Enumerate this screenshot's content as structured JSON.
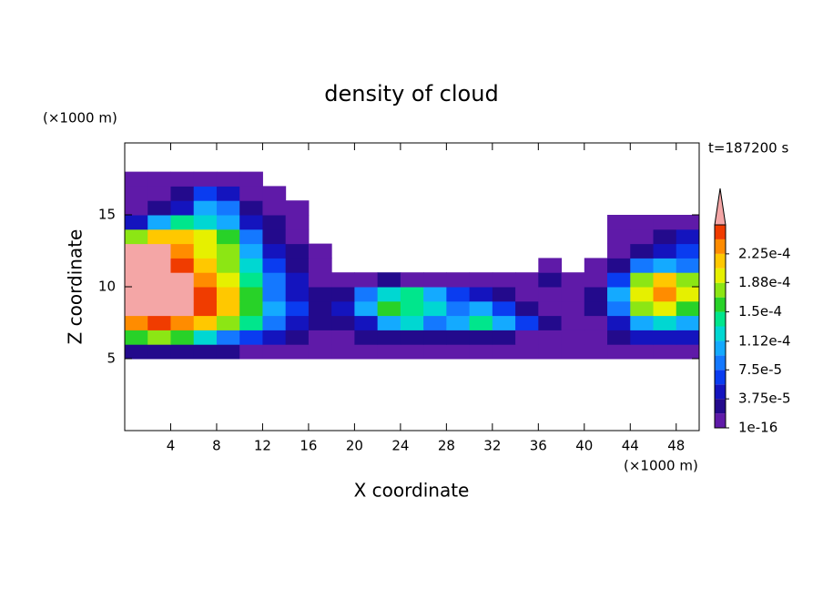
{
  "chart_data": {
    "type": "contourf",
    "title": "density of cloud",
    "xlabel": "X coordinate",
    "ylabel": "Z coordinate",
    "x_unit": "(×1000 m)",
    "y_unit": "(×1000 m)",
    "annotation": "t=187200 s",
    "xlim": [
      0,
      50
    ],
    "ylim": [
      0,
      20
    ],
    "xticks": [
      4,
      8,
      12,
      16,
      20,
      24,
      28,
      32,
      36,
      40,
      44,
      48
    ],
    "yticks": [
      5,
      10,
      15
    ],
    "x": [
      1,
      3,
      5,
      7,
      9,
      11,
      13,
      15,
      17,
      19,
      21,
      23,
      25,
      27,
      29,
      31,
      33,
      35,
      37,
      39,
      41,
      43,
      45,
      47,
      49
    ],
    "y": [
      5.5,
      6.5,
      7.5,
      8.5,
      9.5,
      10.5,
      11.5,
      12.5,
      13.5,
      14.5,
      15.5,
      16.5,
      17.5
    ],
    "values": [
      [
        2.8e-05,
        2.8e-05,
        2.8e-05,
        2.8e-05,
        2.8e-05,
        9e-06,
        9e-06,
        9e-06,
        9e-06,
        9e-06,
        9e-06,
        9e-06,
        9e-06,
        9e-06,
        9e-06,
        9e-06,
        9e-06,
        9e-06,
        9e-06,
        9e-06,
        9e-06,
        9e-06,
        9e-06,
        9e-06,
        9e-06
      ],
      [
        0.000159,
        0.000178,
        0.000159,
        0.000122,
        8.4e-05,
        6.6e-05,
        4.7e-05,
        2.8e-05,
        9e-06,
        9e-06,
        2.8e-05,
        2.8e-05,
        2.8e-05,
        2.8e-05,
        2.8e-05,
        2.8e-05,
        2.8e-05,
        9e-06,
        9e-06,
        9e-06,
        9e-06,
        2.8e-05,
        4.7e-05,
        4.7e-05,
        4.7e-05
      ],
      [
        0.000234,
        0.000253,
        0.000234,
        0.000216,
        0.000178,
        0.000141,
        8.4e-05,
        4.7e-05,
        2.8e-05,
        2.8e-05,
        4.7e-05,
        0.000103,
        0.000122,
        8.4e-05,
        0.000103,
        0.000141,
        0.000103,
        6.6e-05,
        2.8e-05,
        9e-06,
        9e-06,
        4.7e-05,
        0.000103,
        0.000122,
        0.000103
      ],
      [
        0.00028,
        0.00028,
        0.00028,
        0.000253,
        0.000216,
        0.000159,
        0.000103,
        6.6e-05,
        2.8e-05,
        4.7e-05,
        0.000103,
        0.000159,
        0.000141,
        0.000122,
        8.4e-05,
        0.000103,
        6.6e-05,
        2.8e-05,
        9e-06,
        9e-06,
        2.8e-05,
        8.4e-05,
        0.000178,
        0.000197,
        0.000159
      ],
      [
        0.00028,
        0.00028,
        0.00028,
        0.000253,
        0.000216,
        0.000159,
        8.4e-05,
        4.7e-05,
        2.8e-05,
        2.8e-05,
        8.4e-05,
        0.000122,
        0.000141,
        0.000103,
        6.6e-05,
        4.7e-05,
        2.8e-05,
        9e-06,
        9e-06,
        9e-06,
        2.8e-05,
        0.000103,
        0.000197,
        0.000234,
        0.000197
      ],
      [
        0.00028,
        0.00028,
        0.00028,
        0.000234,
        0.000197,
        0.000141,
        8.4e-05,
        4.7e-05,
        9e-06,
        9e-06,
        9e-06,
        2.8e-05,
        9e-06,
        9e-06,
        9e-06,
        9e-06,
        9e-06,
        9e-06,
        2.8e-05,
        9e-06,
        9e-06,
        6.6e-05,
        0.000178,
        0.000216,
        0.000178
      ],
      [
        0.00028,
        0.00028,
        0.000253,
        0.000216,
        0.000178,
        0.000122,
        6.6e-05,
        2.8e-05,
        9e-06,
        null,
        null,
        null,
        null,
        null,
        null,
        null,
        null,
        null,
        9e-06,
        null,
        9e-06,
        2.8e-05,
        8.4e-05,
        0.000103,
        8.4e-05
      ],
      [
        0.00028,
        0.00028,
        0.000234,
        0.000197,
        0.000178,
        0.000103,
        4.7e-05,
        2.8e-05,
        9e-06,
        null,
        null,
        null,
        null,
        null,
        null,
        null,
        null,
        null,
        null,
        null,
        null,
        9e-06,
        2.8e-05,
        4.7e-05,
        6.6e-05
      ],
      [
        0.000178,
        0.000216,
        0.000216,
        0.000197,
        0.000159,
        8.4e-05,
        2.8e-05,
        9e-06,
        null,
        null,
        null,
        null,
        null,
        null,
        null,
        null,
        null,
        null,
        null,
        null,
        null,
        9e-06,
        9e-06,
        2.8e-05,
        4.7e-05
      ],
      [
        4.7e-05,
        0.000103,
        0.000141,
        0.000122,
        0.000103,
        4.7e-05,
        2.8e-05,
        9e-06,
        null,
        null,
        null,
        null,
        null,
        null,
        null,
        null,
        null,
        null,
        null,
        null,
        null,
        9e-06,
        9e-06,
        9e-06,
        9e-06
      ],
      [
        9e-06,
        2.8e-05,
        4.7e-05,
        0.000103,
        8.4e-05,
        2.8e-05,
        9e-06,
        9e-06,
        null,
        null,
        null,
        null,
        null,
        null,
        null,
        null,
        null,
        null,
        null,
        null,
        null,
        null,
        null,
        null,
        null
      ],
      [
        9e-06,
        9e-06,
        2.8e-05,
        6.6e-05,
        4.7e-05,
        9e-06,
        9e-06,
        null,
        null,
        null,
        null,
        null,
        null,
        null,
        null,
        null,
        null,
        null,
        null,
        null,
        null,
        null,
        null,
        null,
        null
      ],
      [
        9e-06,
        9e-06,
        9e-06,
        9e-06,
        9e-06,
        9e-06,
        null,
        null,
        null,
        null,
        null,
        null,
        null,
        null,
        null,
        null,
        null,
        null,
        null,
        null,
        null,
        null,
        null,
        null,
        null
      ]
    ],
    "colorbar": {
      "levels": [
        1e-16,
        1.875e-05,
        3.75e-05,
        5.625e-05,
        7.5e-05,
        9.375e-05,
        0.0001125,
        0.00013125,
        0.00015,
        0.00016875,
        0.0001875,
        0.00020625,
        0.000225,
        0.00024375,
        0.0002625
      ],
      "colors": [
        "#5f1aa8",
        "#230a8c",
        "#1414be",
        "#0a3cf0",
        "#1478ff",
        "#14aaff",
        "#00d7d2",
        "#00e68c",
        "#28d228",
        "#8ce614",
        "#e6f000",
        "#ffc800",
        "#ff8c00",
        "#f03c00"
      ],
      "over_color": "#f4a6a6",
      "ticks": [
        1e-16,
        {
          "value": 3.75e-05,
          "label": "3.75e-5"
        },
        {
          "value": 7.5e-05,
          "label": "7.5e-5"
        },
        {
          "value": 0.000112,
          "label": "1.12e-4"
        },
        {
          "value": 0.00015,
          "label": "1.5e-4"
        },
        {
          "value": 0.000188,
          "label": "1.88e-4"
        },
        {
          "value": 0.000225,
          "label": "2.25e-4"
        }
      ]
    }
  }
}
